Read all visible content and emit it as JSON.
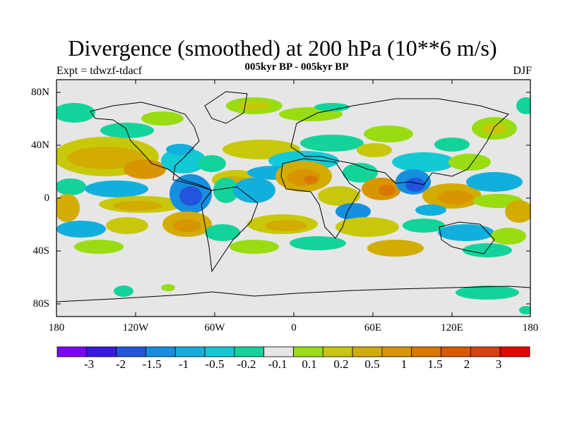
{
  "title": "Divergence (smoothed) at 200 hPa (10**6 m/s)",
  "subtitle": "005kyr BP - 005kyr BP",
  "experiment": "Expt = tdwzf-tdacf",
  "season": "DJF",
  "lat_labels": [
    "80N",
    "40N",
    "0",
    "40S",
    "80S"
  ],
  "lon_labels": [
    "180",
    "120W",
    "60W",
    "0",
    "60E",
    "120E",
    "180"
  ],
  "colorbar": {
    "colors": [
      "#7f00ff",
      "#3a18e4",
      "#2255dc",
      "#168fde",
      "#12afdc",
      "#13c9d4",
      "#13d39b",
      "#e6e6e6",
      "#99dc12",
      "#c8c80a",
      "#d2ac00",
      "#d99500",
      "#d97700",
      "#d95900",
      "#d93f13",
      "#e60000"
    ],
    "labels": [
      "-3",
      "-2",
      "-1.5",
      "-1",
      "-0.5",
      "-0.2",
      "-0.1",
      "0.1",
      "0.2",
      "0.5",
      "1",
      "1.5",
      "2",
      "3"
    ]
  },
  "map_data": {
    "type": "filled-contour map",
    "field": "200 hPa divergence difference",
    "projection": "cylindrical equidistant",
    "lon_range": [
      -180,
      180
    ],
    "lat_range": [
      -90,
      90
    ],
    "background_level": "-0.1 to 0.1"
  }
}
